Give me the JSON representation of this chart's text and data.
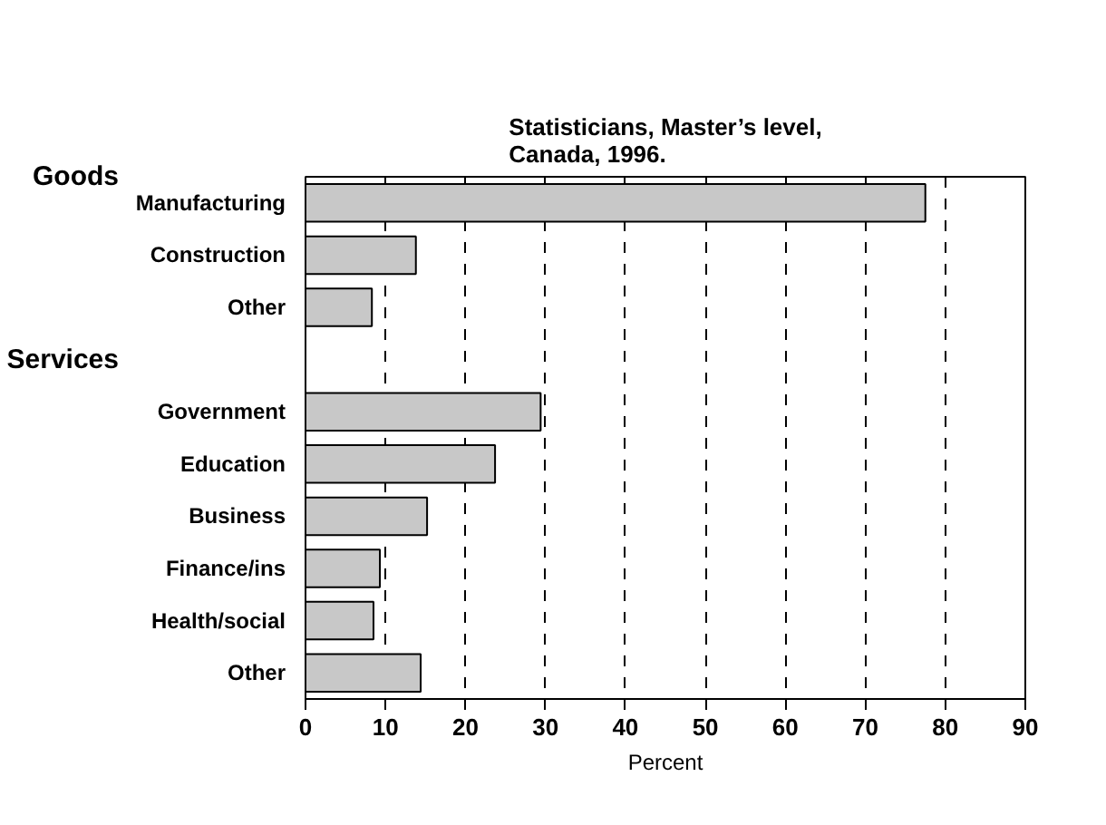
{
  "chart_data": {
    "type": "bar",
    "orientation": "horizontal",
    "title": "Statisticians, Master’s level,\nCanada, 1996.",
    "xlabel": "Percent",
    "categories": [
      "Manufacturing",
      "Construction",
      "Other",
      null,
      "Government",
      "Education",
      "Business",
      "Finance/ins",
      "Health/social",
      "Other"
    ],
    "values": [
      77.5,
      13.8,
      8.3,
      null,
      29.4,
      23.7,
      15.2,
      9.3,
      8.5,
      14.4
    ],
    "color": "#c8c8c8",
    "annotations": [
      "Goods",
      "Services"
    ],
    "xlim": [
      0,
      90
    ],
    "xticks": [
      0,
      10,
      20,
      30,
      40,
      50,
      60,
      70,
      80,
      90
    ],
    "grid": "x"
  }
}
